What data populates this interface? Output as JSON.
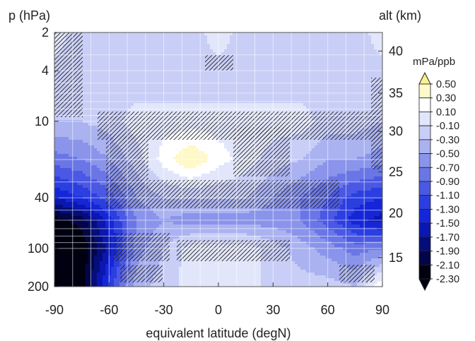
{
  "chart_data": {
    "type": "heatmap",
    "title": "",
    "xlabel": "equivalent latitude (degN)",
    "ylabel_left": "p (hPa)",
    "ylabel_right": "alt (km)",
    "colorbar_unit": "mPa/ppb",
    "xlim": [
      -90,
      90
    ],
    "ylim_p_hPa": [
      200,
      2
    ],
    "y_scale": "log",
    "x_ticks": [
      "-90",
      "-60",
      "-30",
      "0",
      "30",
      "60",
      "90"
    ],
    "x_tick_values": [
      -90,
      -60,
      -30,
      0,
      30,
      60,
      90
    ],
    "y_ticks_left": [
      "2",
      "4",
      "10",
      "40",
      "100",
      "200"
    ],
    "y_tick_values_left": [
      2,
      4,
      10,
      40,
      100,
      200
    ],
    "y_ticks_right": [
      "40",
      "35",
      "30",
      "25",
      "20",
      "15"
    ],
    "y_tick_p_right": [
      2.8,
      6.0,
      12.0,
      25.0,
      53.0,
      118.0
    ],
    "grid": true,
    "hatching": "stippled regions of low significance",
    "levels": [
      "0.50",
      "0.30",
      "0.10",
      "-0.10",
      "-0.30",
      "-0.50",
      "-0.70",
      "-0.90",
      "-1.10",
      "-1.30",
      "-1.50",
      "-1.70",
      "-1.90",
      "-2.10",
      "-2.30"
    ],
    "level_colors": [
      "#fff3a0",
      "#fff8c8",
      "#ffffff",
      "#e2e6fb",
      "#c8cef6",
      "#aab2f0",
      "#8a94ea",
      "#6a76e6",
      "#4a58e4",
      "#2b3ee0",
      "#1526d8",
      "#0a17b0",
      "#050d7a",
      "#020648",
      "#000010"
    ],
    "extend": "both",
    "field": {
      "lat": [
        -90,
        -75,
        -60,
        -45,
        -30,
        -15,
        0,
        15,
        30,
        45,
        60,
        75,
        90
      ],
      "p_hPa": [
        2,
        5,
        10,
        20,
        40,
        60,
        100,
        200
      ],
      "values": [
        [
          0.0,
          -0.2,
          -0.2,
          -0.2,
          -0.2,
          -0.2,
          0.0,
          -0.2,
          -0.2,
          -0.2,
          -0.2,
          -0.2,
          0.0
        ],
        [
          -0.2,
          -0.2,
          -0.2,
          -0.2,
          -0.2,
          -0.2,
          -0.2,
          -0.2,
          -0.2,
          -0.2,
          -0.2,
          -0.2,
          -0.2
        ],
        [
          -0.3,
          -0.3,
          -0.2,
          0.0,
          0.0,
          0.0,
          0.0,
          0.0,
          0.0,
          0.0,
          -0.2,
          -0.2,
          -0.3
        ],
        [
          -0.8,
          -0.7,
          -0.5,
          -0.2,
          0.2,
          0.5,
          0.2,
          0.0,
          -0.2,
          -0.3,
          -0.5,
          -0.5,
          -0.6
        ],
        [
          -1.5,
          -1.3,
          -1.0,
          -0.5,
          -0.3,
          -0.3,
          -0.3,
          -0.3,
          -0.5,
          -0.7,
          -0.9,
          -1.2,
          -1.3
        ],
        [
          -2.2,
          -2.0,
          -1.4,
          -0.7,
          -0.5,
          -0.6,
          -0.6,
          -0.6,
          -0.6,
          -0.7,
          -1.0,
          -1.4,
          -1.6
        ],
        [
          -2.4,
          -2.3,
          -1.6,
          -0.6,
          -0.3,
          0.0,
          0.0,
          0.0,
          -0.2,
          -0.4,
          -0.6,
          -0.8,
          -0.7
        ],
        [
          -2.4,
          -2.2,
          -1.2,
          -0.4,
          -0.2,
          0.0,
          0.0,
          0.0,
          -0.2,
          -0.2,
          -0.2,
          -0.3,
          0.3
        ]
      ]
    }
  }
}
